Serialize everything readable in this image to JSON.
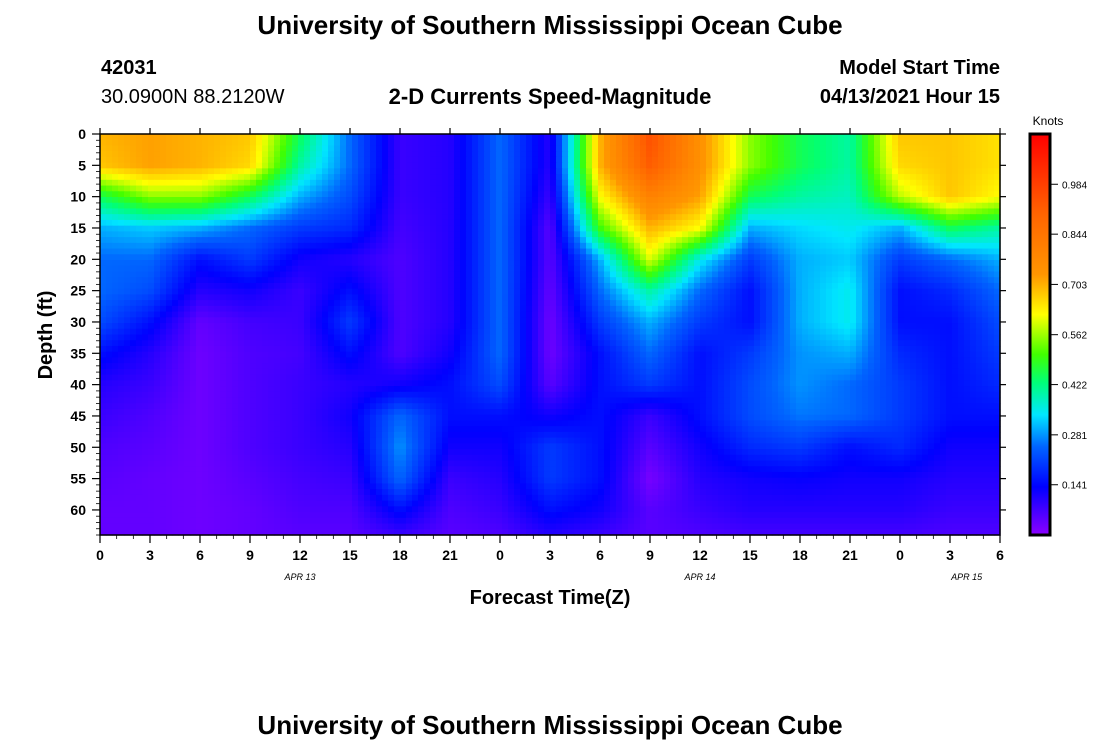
{
  "page": {
    "top_title": "University of Southern Mississippi Ocean Cube",
    "bottom_title": "University of Southern Mississippi Ocean Cube"
  },
  "station": {
    "id": "42031",
    "coords": "30.0900N  88.2120W"
  },
  "model": {
    "start_label": "Model Start Time",
    "start_value": "04/13/2021 Hour 15"
  },
  "chart_data": {
    "type": "heatmap",
    "title": "2-D Currents Speed-Magnitude",
    "xlabel": "Forecast Time(Z)",
    "ylabel": "Depth (ft)",
    "x_range_hours": [
      0,
      54
    ],
    "x_tick_labels": [
      "0",
      "3",
      "6",
      "9",
      "12",
      "15",
      "18",
      "21",
      "0",
      "3",
      "6",
      "9",
      "12",
      "15",
      "18",
      "21",
      "0",
      "3",
      "6"
    ],
    "date_labels": [
      {
        "label": "APR 13",
        "hour": 12
      },
      {
        "label": "APR 14",
        "hour": 36
      },
      {
        "label": "APR 15",
        "hour": 52
      }
    ],
    "y_range_ft": [
      0,
      64
    ],
    "y_ticks": [
      0,
      5,
      10,
      15,
      20,
      25,
      30,
      35,
      40,
      45,
      50,
      55,
      60
    ],
    "colorbar": {
      "unit": "Knots",
      "range": [
        0,
        1.125
      ],
      "tick_values": [
        0.984,
        0.844,
        0.703,
        0.562,
        0.422,
        0.281,
        0.141
      ],
      "tick_labels": [
        "0.984",
        "0.844",
        "0.703",
        "0.562",
        "0.422",
        "0.281",
        "0.141"
      ]
    },
    "speed_knots_grid": {
      "hours": [
        0,
        3,
        6,
        9,
        12,
        15,
        18,
        21,
        24,
        27,
        30,
        33,
        36,
        39,
        42,
        45,
        48,
        51,
        54
      ],
      "depths_ft": [
        0,
        5,
        10,
        15,
        20,
        25,
        30,
        35,
        40,
        45,
        50,
        55,
        60,
        64
      ],
      "rows": [
        [
          0.7,
          0.72,
          0.7,
          0.68,
          0.45,
          0.25,
          0.08,
          0.1,
          0.25,
          0.1,
          0.7,
          0.95,
          0.75,
          0.55,
          0.45,
          0.4,
          0.68,
          0.68,
          0.65
        ],
        [
          0.68,
          0.72,
          0.7,
          0.66,
          0.4,
          0.25,
          0.08,
          0.1,
          0.25,
          0.1,
          0.7,
          0.92,
          0.75,
          0.55,
          0.45,
          0.4,
          0.66,
          0.68,
          0.65
        ],
        [
          0.45,
          0.55,
          0.55,
          0.45,
          0.3,
          0.22,
          0.08,
          0.1,
          0.25,
          0.08,
          0.62,
          0.8,
          0.72,
          0.45,
          0.4,
          0.38,
          0.58,
          0.68,
          0.62
        ],
        [
          0.3,
          0.32,
          0.3,
          0.25,
          0.2,
          0.18,
          0.07,
          0.1,
          0.25,
          0.05,
          0.5,
          0.7,
          0.62,
          0.3,
          0.33,
          0.35,
          0.3,
          0.45,
          0.4
        ],
        [
          0.25,
          0.25,
          0.15,
          0.2,
          0.12,
          0.1,
          0.06,
          0.1,
          0.25,
          0.05,
          0.3,
          0.6,
          0.35,
          0.2,
          0.3,
          0.32,
          0.2,
          0.25,
          0.3
        ],
        [
          0.25,
          0.22,
          0.1,
          0.12,
          0.08,
          0.15,
          0.06,
          0.1,
          0.25,
          0.04,
          0.25,
          0.4,
          0.25,
          0.15,
          0.3,
          0.35,
          0.15,
          0.18,
          0.25
        ],
        [
          0.22,
          0.15,
          0.04,
          0.07,
          0.08,
          0.2,
          0.06,
          0.1,
          0.25,
          0.03,
          0.2,
          0.3,
          0.2,
          0.15,
          0.3,
          0.35,
          0.15,
          0.15,
          0.22
        ],
        [
          0.15,
          0.1,
          0.03,
          0.06,
          0.07,
          0.15,
          0.06,
          0.12,
          0.25,
          0.03,
          0.15,
          0.25,
          0.15,
          0.2,
          0.28,
          0.3,
          0.18,
          0.15,
          0.2
        ],
        [
          0.1,
          0.08,
          0.03,
          0.06,
          0.08,
          0.1,
          0.12,
          0.15,
          0.22,
          0.05,
          0.15,
          0.2,
          0.15,
          0.22,
          0.28,
          0.25,
          0.2,
          0.15,
          0.18
        ],
        [
          0.08,
          0.06,
          0.03,
          0.06,
          0.08,
          0.12,
          0.25,
          0.15,
          0.15,
          0.12,
          0.15,
          0.08,
          0.15,
          0.22,
          0.26,
          0.25,
          0.2,
          0.15,
          0.15
        ],
        [
          0.06,
          0.05,
          0.03,
          0.06,
          0.08,
          0.1,
          0.28,
          0.12,
          0.12,
          0.2,
          0.15,
          0.05,
          0.12,
          0.18,
          0.2,
          0.15,
          0.18,
          0.12,
          0.12
        ],
        [
          0.05,
          0.04,
          0.03,
          0.05,
          0.07,
          0.08,
          0.25,
          0.08,
          0.1,
          0.2,
          0.15,
          0.02,
          0.1,
          0.12,
          0.13,
          0.12,
          0.12,
          0.1,
          0.1
        ],
        [
          0.04,
          0.04,
          0.03,
          0.04,
          0.06,
          0.06,
          0.15,
          0.06,
          0.08,
          0.15,
          0.12,
          0.05,
          0.08,
          0.1,
          0.1,
          0.1,
          0.1,
          0.08,
          0.08
        ],
        [
          0.04,
          0.04,
          0.03,
          0.04,
          0.05,
          0.05,
          0.08,
          0.05,
          0.06,
          0.1,
          0.08,
          0.05,
          0.06,
          0.07,
          0.07,
          0.07,
          0.07,
          0.06,
          0.06
        ]
      ]
    }
  }
}
